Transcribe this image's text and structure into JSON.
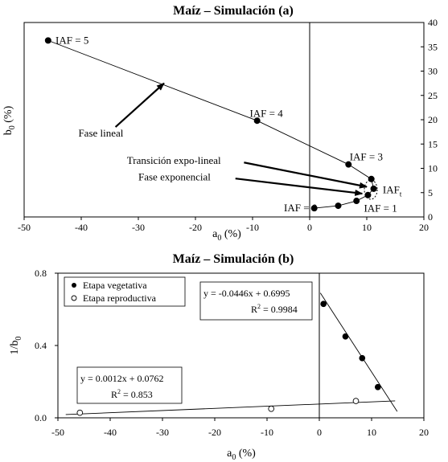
{
  "chart_data": [
    {
      "type": "line",
      "title": "Maíz – Simulación (a)",
      "xlabel": "a",
      "xlabel_sub": "0",
      "xlabel_unit": " (%)",
      "ylabel": "b",
      "ylabel_sub": "0",
      "ylabel_unit": " (%)",
      "xlim": [
        -50,
        20
      ],
      "ylim": [
        0,
        40
      ],
      "xticks": [
        -50,
        -40,
        -30,
        -20,
        -10,
        0,
        10,
        20
      ],
      "yticks": [
        0,
        5,
        10,
        15,
        20,
        25,
        30,
        35,
        40
      ],
      "series": [
        {
          "values": [
            {
              "x": 0.8,
              "y": 1.8
            },
            {
              "x": 5.0,
              "y": 2.3
            },
            {
              "x": 8.2,
              "y": 3.3
            },
            {
              "x": 10.2,
              "y": 4.5
            },
            {
              "x": 11.2,
              "y": 5.8
            },
            {
              "x": 10.8,
              "y": 7.8
            },
            {
              "x": 6.8,
              "y": 10.8
            },
            {
              "x": -9.2,
              "y": 19.8
            },
            {
              "x": -45.8,
              "y": 36.3
            }
          ]
        }
      ],
      "point_labels": [
        {
          "text": "IAF = 0",
          "x": -4.5,
          "y": 1.8
        },
        {
          "text": "IAF = 1",
          "x": 9.5,
          "y": 1.7
        },
        {
          "text": "IAF",
          "sub": "t",
          "x": 12.8,
          "y": 5.5
        },
        {
          "text": "IAF = 3",
          "x": 7.0,
          "y": 12.3
        },
        {
          "text": "IAF = 4",
          "x": -10.5,
          "y": 21.2
        },
        {
          "text": "IAF = 5",
          "x": -44.5,
          "y": 36.3
        }
      ],
      "annotations": [
        {
          "text": "Fase lineal",
          "x": -40.5,
          "y": 17.2,
          "arrow_from": [
            -34,
            18.5
          ],
          "arrow_to": [
            -25.5,
            27.5
          ]
        },
        {
          "text": "Transición expo-lineal",
          "x": -32,
          "y": 11.6,
          "arrow_from": [
            -11.5,
            11.2
          ],
          "arrow_to": [
            10,
            6.2
          ]
        },
        {
          "text": "Fase exponencial",
          "x": -30,
          "y": 8.2,
          "arrow_from": [
            -13,
            7.9
          ],
          "arrow_to": [
            9.2,
            4.8
          ]
        }
      ]
    },
    {
      "type": "scatter",
      "title": "Maíz – Simulación (b)",
      "xlabel": "a",
      "xlabel_sub": "0",
      "xlabel_unit": " (%)",
      "ylabel": "1/b",
      "ylabel_sub": "0",
      "xlim": [
        -50,
        20
      ],
      "ylim": [
        0.0,
        0.8
      ],
      "xticks": [
        -50,
        -40,
        -30,
        -20,
        -10,
        0,
        10,
        20
      ],
      "yticks": [
        0.0,
        0.4,
        0.8
      ],
      "legend_position": "top-left",
      "series": [
        {
          "name": "Etapa vegetativa",
          "marker": "filled",
          "values": [
            {
              "x": 0.8,
              "y": 0.63
            },
            {
              "x": 5.0,
              "y": 0.45
            },
            {
              "x": 8.2,
              "y": 0.33
            },
            {
              "x": 11.2,
              "y": 0.17
            }
          ],
          "fit": {
            "slope": -0.0446,
            "intercept": 0.6995,
            "x_range": [
              0.2,
              14.9
            ]
          },
          "equation": "y = -0.0446x + 0.6995",
          "r2_label": "R",
          "r2_value": " = 0.9984"
        },
        {
          "name": "Etapa reproductiva",
          "marker": "open",
          "values": [
            {
              "x": -45.8,
              "y": 0.028
            },
            {
              "x": -9.2,
              "y": 0.05
            },
            {
              "x": 7.0,
              "y": 0.093
            }
          ],
          "fit": {
            "slope": 0.0012,
            "intercept": 0.0762,
            "x_range": [
              -48.5,
              14.5
            ]
          },
          "equation": "y = 0.0012x + 0.0762",
          "r2_label": "R",
          "r2_value": " = 0.853"
        }
      ]
    }
  ]
}
